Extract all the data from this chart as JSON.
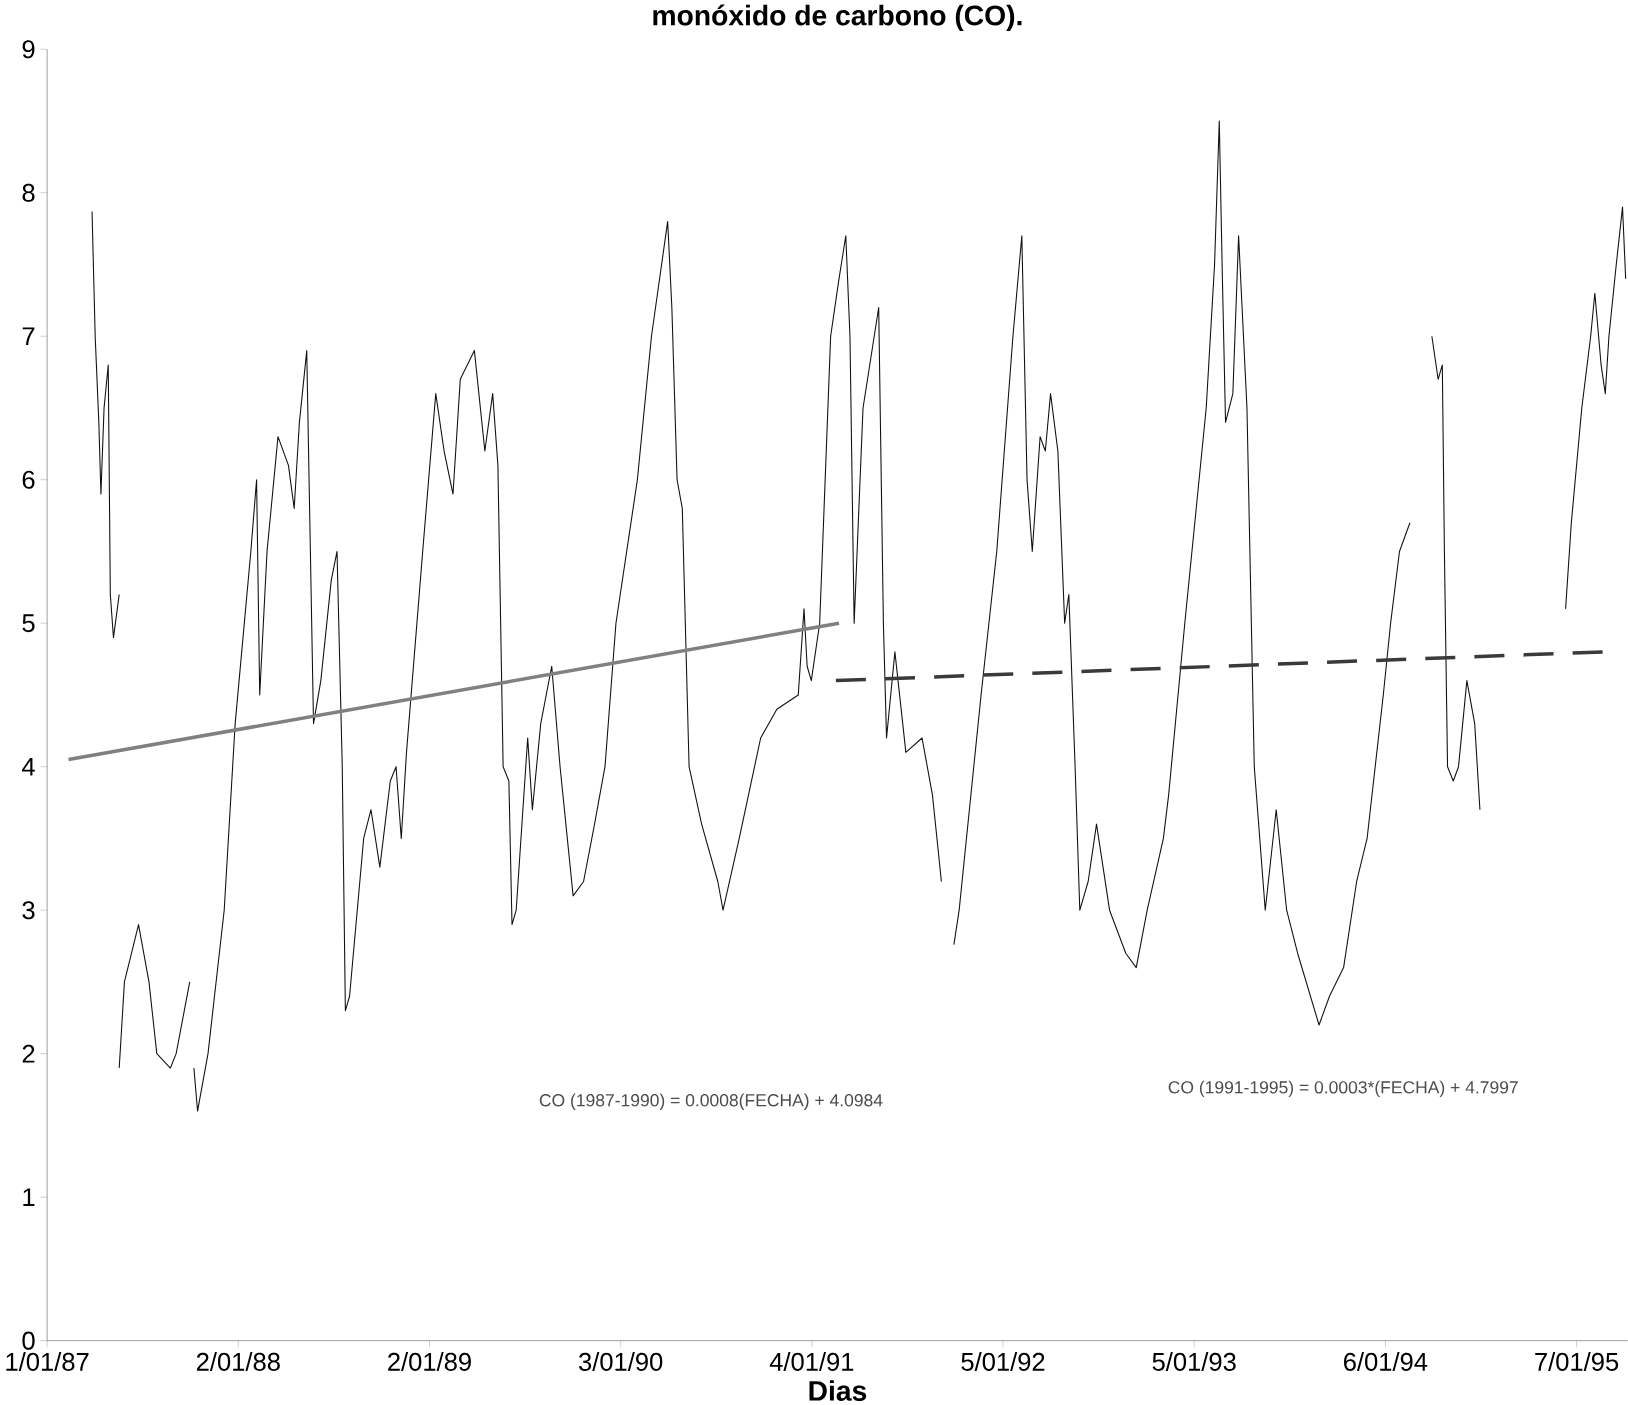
{
  "chart_data": {
    "type": "line",
    "title": "monóxido de carbono (CO).",
    "xlabel": "Dias",
    "annotations": [
      "CO (1987-1990) = 0.0008(FECHA) + 4.0984",
      "CO (1991-1995) = 0.0003*(FECHA) + 4.7997"
    ],
    "xlim": [
      "1987-01-01",
      "1995-04-15"
    ],
    "xticks": [
      {
        "value": "1987-01-01",
        "label": "1/01/87"
      },
      {
        "value": "1988-01-02",
        "label": "2/01/88"
      },
      {
        "value": "1989-01-02",
        "label": "2/01/89"
      },
      {
        "value": "1990-01-03",
        "label": "3/01/90"
      },
      {
        "value": "1991-01-04",
        "label": "4/01/91"
      },
      {
        "value": "1992-01-05",
        "label": "5/01/92"
      },
      {
        "value": "1993-01-05",
        "label": "5/01/93"
      },
      {
        "value": "1994-01-06",
        "label": "6/01/94"
      },
      {
        "value": "1995-01-07",
        "label": "7/01/95"
      }
    ],
    "ylim": [
      0,
      9
    ],
    "yticks": [
      0,
      1,
      2,
      3,
      4,
      5,
      6,
      7,
      8,
      9
    ],
    "grid": false,
    "marker": "none",
    "series": [
      {
        "color": "#111111",
        "line_style": "solid",
        "x": [
          "1987-03-28",
          "1987-04-03",
          "1987-04-10",
          "1987-04-14",
          "1987-04-20",
          "1987-04-28",
          "1987-05-02",
          "1987-05-08",
          "1987-05-19"
        ],
        "values": [
          7.87,
          7.0,
          6.4,
          5.9,
          6.5,
          6.8,
          5.2,
          4.9,
          5.2
        ]
      },
      {
        "color": "#111111",
        "line_style": "solid",
        "x": [
          "1987-05-19",
          "1987-05-29",
          "1987-06-25",
          "1987-07-15",
          "1987-07-30",
          "1987-08-25",
          "1987-09-05",
          "1987-10-01"
        ],
        "values": [
          1.9,
          2.5,
          2.9,
          2.5,
          2.0,
          1.9,
          2.0,
          2.5
        ]
      },
      {
        "color": "#111111",
        "line_style": "solid",
        "x": [
          "1987-10-09",
          "1987-10-16",
          "1987-11-05",
          "1987-12-06",
          "1987-12-27",
          "1988-01-26",
          "1988-02-06",
          "1988-02-12",
          "1988-02-26",
          "1988-03-18",
          "1988-04-07",
          "1988-04-18",
          "1988-04-28",
          "1988-05-12",
          "1988-05-25",
          "1988-06-08",
          "1988-06-28",
          "1988-07-09",
          "1988-07-19",
          "1988-07-25",
          "1988-08-02",
          "1988-08-29",
          "1988-09-12",
          "1988-09-29",
          "1988-10-19",
          "1988-10-30",
          "1988-11-09",
          "1988-11-19",
          "1988-12-20",
          "1989-01-14",
          "1989-01-30",
          "1989-02-16",
          "1989-03-02",
          "1989-03-29",
          "1989-04-18",
          "1989-05-03",
          "1989-05-13",
          "1989-05-23",
          "1989-06-03",
          "1989-06-09",
          "1989-06-17",
          "1989-07-09",
          "1989-07-18",
          "1989-08-03",
          "1989-08-24",
          "1989-09-09",
          "1989-10-04",
          "1989-10-24",
          "1989-11-14",
          "1989-12-04",
          "1989-12-25",
          "1990-02-04",
          "1990-03-03",
          "1990-04-03",
          "1990-04-11",
          "1990-04-21",
          "1990-05-01",
          "1990-05-14",
          "1990-06-07",
          "1990-07-08",
          "1990-07-18",
          "1990-08-18",
          "1990-09-28",
          "1990-10-29",
          "1990-12-09",
          "1990-12-20",
          "1990-12-26",
          "1991-01-03",
          "1991-01-19",
          "1991-02-09",
          "1991-02-25",
          "1991-03-10",
          "1991-03-18",
          "1991-03-26",
          "1991-04-12",
          "1991-05-12",
          "1991-05-21",
          "1991-05-27",
          "1991-06-12",
          "1991-07-03",
          "1991-08-03",
          "1991-08-23",
          "1991-09-09"
        ],
        "values": [
          1.9,
          1.6,
          2.0,
          3.0,
          4.3,
          5.5,
          6.0,
          4.5,
          5.5,
          6.3,
          6.1,
          5.8,
          6.4,
          6.9,
          4.3,
          4.6,
          5.3,
          5.5,
          4.0,
          2.3,
          2.4,
          3.5,
          3.7,
          3.3,
          3.9,
          4.0,
          3.5,
          4.1,
          5.5,
          6.6,
          6.2,
          5.9,
          6.7,
          6.9,
          6.2,
          6.6,
          6.1,
          4.0,
          3.9,
          2.9,
          3.0,
          4.2,
          3.7,
          4.3,
          4.7,
          4.0,
          3.1,
          3.2,
          3.6,
          4.0,
          5.0,
          6.0,
          7.0,
          7.8,
          7.2,
          6.0,
          5.8,
          4.0,
          3.6,
          3.2,
          3.0,
          3.5,
          4.2,
          4.4,
          4.5,
          5.1,
          4.7,
          4.6,
          5.0,
          7.0,
          7.4,
          7.7,
          7.0,
          5.0,
          6.5,
          7.2,
          5.0,
          4.2,
          4.8,
          4.1,
          4.2,
          3.8,
          3.2
        ]
      },
      {
        "color": "#111111",
        "line_style": "solid",
        "x": [
          "1991-10-03",
          "1991-10-13",
          "1991-11-24",
          "1991-12-24",
          "1992-01-24",
          "1992-02-10",
          "1992-02-20",
          "1992-03-01",
          "1992-03-16",
          "1992-03-26",
          "1992-04-05",
          "1992-04-19",
          "1992-05-02",
          "1992-05-10",
          "1992-05-22",
          "1992-05-31",
          "1992-06-16",
          "1992-07-02",
          "1992-07-27",
          "1992-08-27",
          "1992-09-16",
          "1992-10-07",
          "1992-11-07",
          "1992-11-17",
          "1992-12-18",
          "1993-01-28",
          "1993-02-13",
          "1993-02-22",
          "1993-02-28",
          "1993-03-06",
          "1993-03-20",
          "1993-03-31",
          "1993-04-16",
          "1993-04-30",
          "1993-05-21",
          "1993-06-11",
          "1993-07-01",
          "1993-07-22",
          "1993-09-01",
          "1993-09-21",
          "1993-10-18",
          "1993-11-12",
          "1993-12-02",
          "1994-01-02",
          "1994-01-16",
          "1994-02-02",
          "1994-02-22"
        ],
        "values": [
          2.76,
          3.0,
          4.5,
          5.5,
          7.0,
          7.7,
          6.0,
          5.5,
          6.3,
          6.2,
          6.6,
          6.2,
          5.0,
          5.2,
          4.0,
          3.0,
          3.2,
          3.6,
          3.0,
          2.7,
          2.6,
          3.0,
          3.5,
          3.8,
          5.0,
          6.5,
          7.5,
          8.5,
          7.4,
          6.4,
          6.6,
          7.7,
          6.5,
          4.0,
          3.0,
          3.7,
          3.0,
          2.7,
          2.2,
          2.4,
          2.6,
          3.2,
          3.5,
          4.5,
          5.0,
          5.5,
          5.7
        ]
      },
      {
        "color": "#111111",
        "line_style": "solid",
        "x": [
          "1994-04-05",
          "1994-04-17",
          "1994-04-25",
          "1994-04-29",
          "1994-05-05",
          "1994-05-16",
          "1994-05-26",
          "1994-06-11",
          "1994-06-26",
          "1994-07-06"
        ],
        "values": [
          7.0,
          6.7,
          6.8,
          5.5,
          4.0,
          3.9,
          4.0,
          4.6,
          4.3,
          3.7
        ]
      },
      {
        "color": "#111111",
        "line_style": "solid",
        "x": [
          "1994-12-17",
          "1994-12-28",
          "1995-01-17",
          "1995-02-03",
          "1995-02-11",
          "1995-02-23",
          "1995-03-03",
          "1995-03-10",
          "1995-03-24",
          "1995-04-05",
          "1995-04-11"
        ],
        "values": [
          5.1,
          5.7,
          6.5,
          7.0,
          7.3,
          6.8,
          6.6,
          7.0,
          7.5,
          7.9,
          7.4
        ]
      },
      {
        "color": "#808080",
        "line_style": "solid",
        "x": [
          "1987-02-11",
          "1991-02-25"
        ],
        "values": [
          4.05,
          5.0
        ]
      },
      {
        "color": "#3a3a3a",
        "line_style": "dashed",
        "x": [
          "1991-02-19",
          "1995-02-27"
        ],
        "values": [
          4.6,
          4.8
        ]
      }
    ]
  }
}
